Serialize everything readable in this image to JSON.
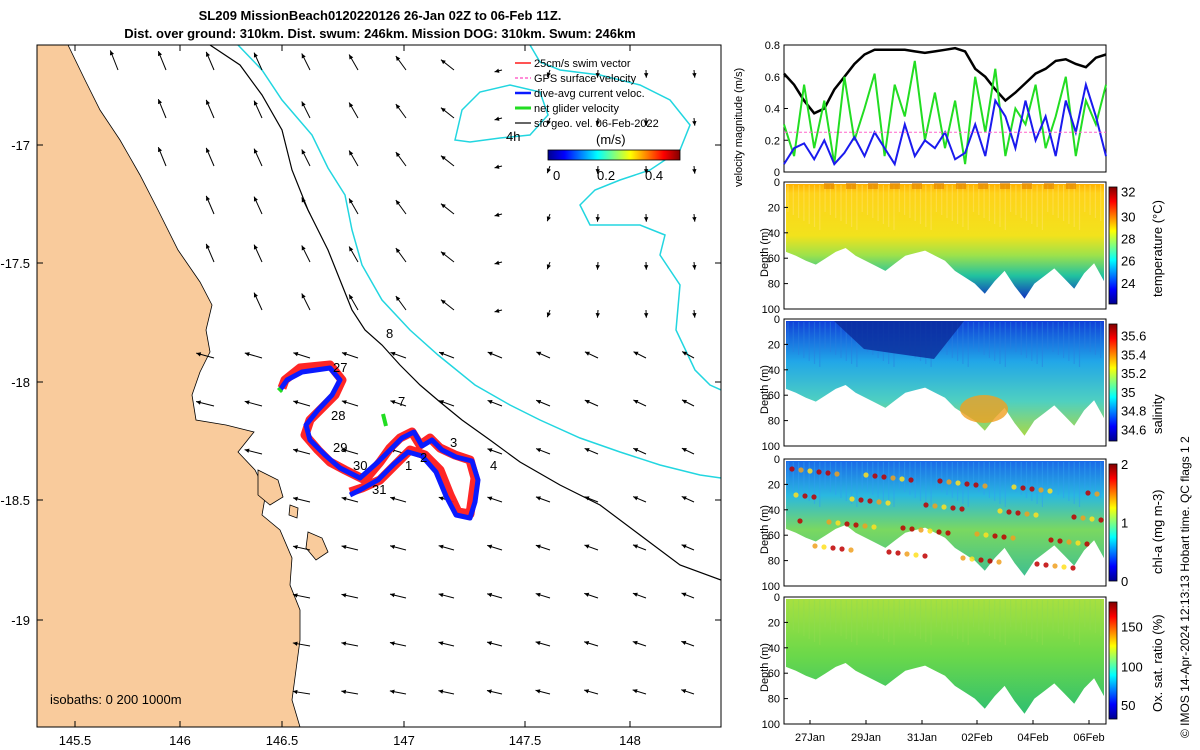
{
  "header": {
    "title_line1": "SL209 MissionBeach0120220126 26-Jan 02Z to 06-Feb 11Z.",
    "title_line2": "Dist. over ground: 310km. Dist. swum: 246km. Mission DOG: 310km. Swum: 246km"
  },
  "map": {
    "lon_ticks": [
      "145.5",
      "146",
      "146.5",
      "147",
      "147.5",
      "148"
    ],
    "lat_ticks": [
      "-17",
      "-17.5",
      "-18",
      "-18.5",
      "-19"
    ],
    "legend": [
      "25cm/s swim vector",
      "GPS surface velocity",
      "dive-avg current veloc.",
      "net glider velocity",
      "sfc geo. vel. 06-Feb-2022"
    ],
    "scale_label": "4h",
    "colorbar_title": "(m/s)",
    "colorbar_ticks": [
      "0",
      "0.2",
      "0.4"
    ],
    "isobath_label": "isobaths: 0   200  1000m",
    "isobath_value": "8",
    "track_labels": [
      "27",
      "28",
      "29",
      "30",
      "31",
      "1",
      "2",
      "3",
      "4",
      "7"
    ],
    "land_color": "#f9cb9c",
    "track_color": "#0a1aff",
    "swim_color": "#ff1a1a"
  },
  "chart_data": [
    {
      "type": "line",
      "title": "",
      "ylabel": "velocity magnitude (m/s)",
      "ylim": [
        0,
        0.8
      ],
      "yticks": [
        "0",
        "0.2",
        "0.4",
        "0.6",
        "0.8"
      ],
      "x": [
        0,
        1,
        2,
        3,
        4,
        5,
        6,
        7,
        8,
        9,
        10,
        11,
        12,
        13,
        14,
        15,
        16,
        17,
        18,
        19,
        20,
        21,
        22,
        23,
        24,
        25,
        26,
        27,
        28,
        29,
        30,
        31,
        32
      ],
      "series": [
        {
          "name": "sfc geo. vel.",
          "color": "#000000",
          "values": [
            0.62,
            0.55,
            0.45,
            0.37,
            0.4,
            0.52,
            0.6,
            0.68,
            0.74,
            0.77,
            0.77,
            0.77,
            0.77,
            0.76,
            0.75,
            0.76,
            0.77,
            0.78,
            0.76,
            0.65,
            0.6,
            0.52,
            0.45,
            0.5,
            0.56,
            0.62,
            0.65,
            0.7,
            0.71,
            0.68,
            0.66,
            0.72,
            0.74
          ]
        },
        {
          "name": "net glider velocity",
          "color": "#22dd22",
          "values": [
            0.3,
            0.1,
            0.55,
            0.15,
            0.45,
            0.05,
            0.6,
            0.2,
            0.4,
            0.62,
            0.1,
            0.55,
            0.35,
            0.7,
            0.2,
            0.5,
            0.15,
            0.45,
            0.05,
            0.6,
            0.25,
            0.65,
            0.1,
            0.4,
            0.3,
            0.55,
            0.15,
            0.35,
            0.6,
            0.1,
            0.45,
            0.3,
            0.55
          ]
        },
        {
          "name": "dive-avg current veloc.",
          "color": "#1a1aee",
          "values": [
            0.05,
            0.15,
            0.18,
            0.08,
            0.2,
            0.05,
            0.12,
            0.22,
            0.1,
            0.25,
            0.15,
            0.05,
            0.3,
            0.1,
            0.2,
            0.15,
            0.25,
            0.08,
            0.12,
            0.3,
            0.1,
            0.45,
            0.35,
            0.15,
            0.45,
            0.2,
            0.35,
            0.1,
            0.45,
            0.25,
            0.55,
            0.35,
            0.1
          ]
        },
        {
          "name": "GPS surface velocity",
          "color": "#ff66cc",
          "values": [
            0.25,
            0.25,
            0.25,
            0.25,
            0.25,
            0.25,
            0.25,
            0.25,
            0.25,
            0.25,
            0.25,
            0.25,
            0.25,
            0.25,
            0.25,
            0.25,
            0.25,
            0.25,
            0.25,
            0.25,
            0.25,
            0.25,
            0.25,
            0.25,
            0.25,
            0.25,
            0.25,
            0.25,
            0.25,
            0.25,
            0.25,
            0.25,
            0.25
          ]
        }
      ]
    },
    {
      "type": "heatmap",
      "ylabel": "Depth (m)",
      "ylim": [
        100,
        0
      ],
      "yticks": [
        "0",
        "20",
        "40",
        "60",
        "80",
        "100"
      ],
      "colorbar_label": "temperature (°C)",
      "colorbar_ticks": [
        "32",
        "30",
        "28",
        "26",
        "24"
      ],
      "xticks": [
        "27Jan",
        "29Jan",
        "31Jan",
        "02Feb",
        "04Feb",
        "06Feb"
      ]
    },
    {
      "type": "heatmap",
      "ylabel": "Depth (m)",
      "ylim": [
        100,
        0
      ],
      "yticks": [
        "0",
        "20",
        "40",
        "60",
        "80",
        "100"
      ],
      "colorbar_label": "salinity",
      "colorbar_ticks": [
        "35.6",
        "35.4",
        "35.2",
        "35",
        "34.8",
        "34.6"
      ],
      "xticks": [
        "27Jan",
        "29Jan",
        "31Jan",
        "02Feb",
        "04Feb",
        "06Feb"
      ]
    },
    {
      "type": "heatmap",
      "ylabel": "Depth (m)",
      "ylim": [
        100,
        0
      ],
      "yticks": [
        "0",
        "20",
        "40",
        "60",
        "80",
        "100"
      ],
      "colorbar_label": "chl-a (mg m-3)",
      "colorbar_ticks": [
        "2",
        "1",
        "0"
      ],
      "xticks": [
        "27Jan",
        "29Jan",
        "31Jan",
        "02Feb",
        "04Feb",
        "06Feb"
      ]
    },
    {
      "type": "heatmap",
      "ylabel": "Depth (m)",
      "ylim": [
        100,
        0
      ],
      "yticks": [
        "0",
        "20",
        "40",
        "60",
        "80",
        "100"
      ],
      "colorbar_label": "Ox. sat. ratio (%)",
      "colorbar_ticks": [
        "150",
        "100",
        "50"
      ],
      "xticks": [
        "27Jan",
        "29Jan",
        "31Jan",
        "02Feb",
        "04Feb",
        "06Feb"
      ]
    }
  ],
  "footer": {
    "credit": "© IMOS 14-Apr-2024 12:13:13 Hobart time. QC flags 1  2"
  }
}
